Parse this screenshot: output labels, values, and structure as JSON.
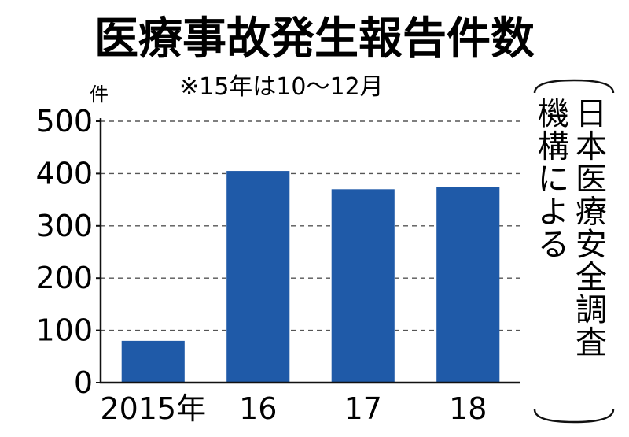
{
  "chart_data": {
    "type": "bar",
    "title": "医療事故発生報告件数",
    "subtitle": "※15年は10〜12月",
    "ylabel": "件",
    "categories": [
      "2015年",
      "16",
      "17",
      "18"
    ],
    "values": [
      80,
      405,
      370,
      375
    ],
    "ylim": [
      0,
      500
    ],
    "yticks": [
      0,
      100,
      200,
      300,
      400,
      500
    ],
    "grid": true,
    "bar_color": "#1f5aa8",
    "source_lines": [
      "日本医療安全調査",
      "機構による"
    ]
  }
}
